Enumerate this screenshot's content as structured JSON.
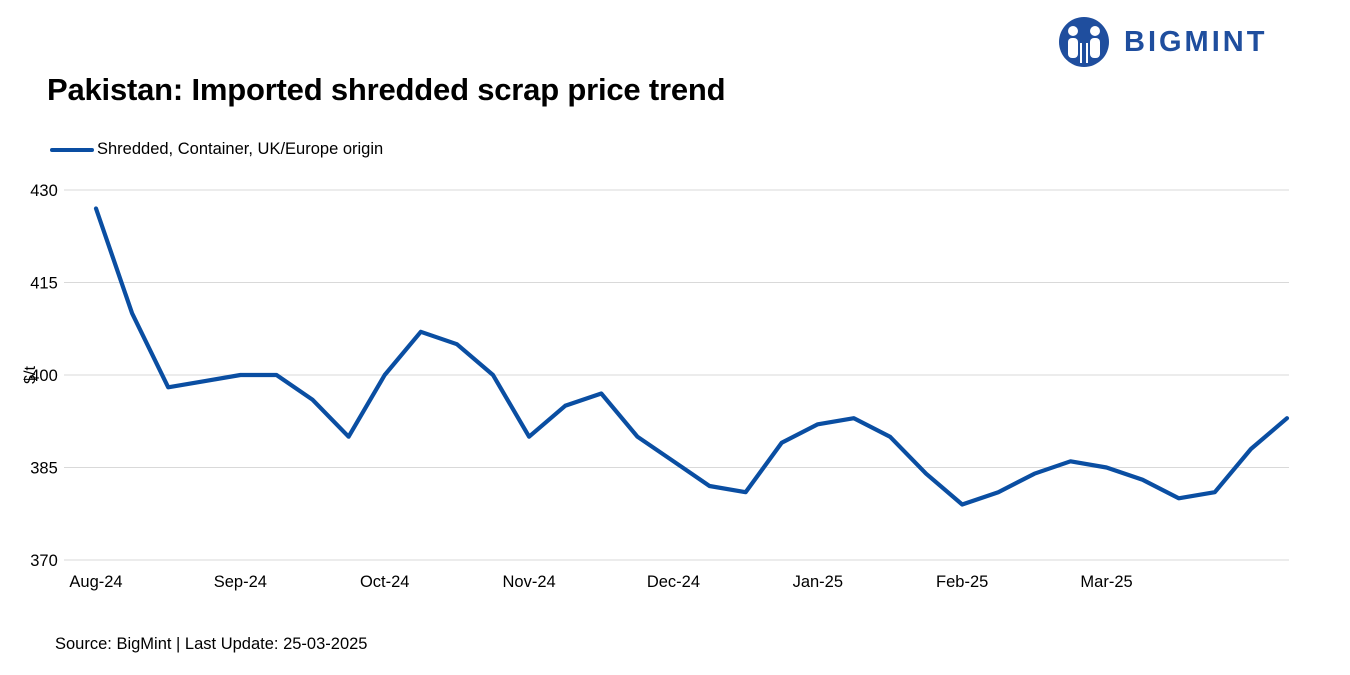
{
  "header": {
    "title": "Pakistan: Imported shredded scrap price trend",
    "logo_text": "BIGMINT"
  },
  "footer": {
    "source": "Source: BigMint | Last Update: 25-03-2025"
  },
  "colors": {
    "series": "#0a4ea2",
    "brand": "#1f4e9e",
    "grid": "#d9d9d9"
  },
  "chart_data": {
    "type": "line",
    "title": "Pakistan: Imported shredded scrap price trend",
    "xlabel": "",
    "ylabel": "$/t",
    "ylim": [
      370,
      430
    ],
    "yticks": [
      370,
      385,
      400,
      415,
      430
    ],
    "grid": true,
    "legend_position": "top-left",
    "x_tick_labels": [
      "Aug-24",
      "Sep-24",
      "Oct-24",
      "Nov-24",
      "Dec-24",
      "Jan-25",
      "Feb-25",
      "Mar-25"
    ],
    "x_tick_every": 4,
    "series": [
      {
        "name": "Shredded, Container, UK/Europe origin",
        "values": [
          427,
          410,
          398,
          399,
          400,
          400,
          396,
          390,
          400,
          407,
          405,
          400,
          390,
          395,
          397,
          390,
          386,
          382,
          381,
          389,
          392,
          393,
          390,
          384,
          379,
          381,
          384,
          386,
          385,
          383,
          380,
          381,
          388,
          393
        ]
      }
    ]
  }
}
